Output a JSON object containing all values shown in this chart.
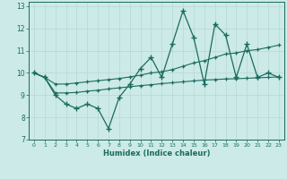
{
  "xlabel": "Humidex (Indice chaleur)",
  "ylabel": "",
  "background_color": "#cceae7",
  "grid_color": "#b8d8d4",
  "line_color": "#1a6b5e",
  "xlim": [
    -0.5,
    23.5
  ],
  "ylim": [
    7,
    13.2
  ],
  "yticks": [
    7,
    8,
    9,
    10,
    11,
    12,
    13
  ],
  "xticks": [
    0,
    1,
    2,
    3,
    4,
    5,
    6,
    7,
    8,
    9,
    10,
    11,
    12,
    13,
    14,
    15,
    16,
    17,
    18,
    19,
    20,
    21,
    22,
    23
  ],
  "x": [
    0,
    1,
    2,
    3,
    4,
    5,
    6,
    7,
    8,
    9,
    10,
    11,
    12,
    13,
    14,
    15,
    16,
    17,
    18,
    19,
    20,
    21,
    22,
    23
  ],
  "y_main": [
    10.0,
    9.8,
    9.0,
    8.6,
    8.4,
    8.6,
    8.4,
    7.5,
    8.9,
    9.5,
    10.2,
    10.7,
    9.8,
    11.3,
    12.8,
    11.6,
    9.5,
    12.2,
    11.7,
    9.8,
    11.3,
    9.8,
    10.0,
    9.8
  ],
  "y_upper": [
    10.0,
    9.8,
    9.5,
    9.5,
    9.55,
    9.6,
    9.65,
    9.7,
    9.75,
    9.82,
    9.9,
    10.0,
    10.05,
    10.15,
    10.3,
    10.45,
    10.55,
    10.7,
    10.85,
    10.9,
    11.0,
    11.05,
    11.15,
    11.25
  ],
  "y_lower": [
    10.0,
    9.8,
    9.1,
    9.1,
    9.12,
    9.18,
    9.22,
    9.28,
    9.33,
    9.38,
    9.43,
    9.47,
    9.52,
    9.56,
    9.6,
    9.64,
    9.68,
    9.7,
    9.73,
    9.74,
    9.76,
    9.78,
    9.8,
    9.82
  ]
}
